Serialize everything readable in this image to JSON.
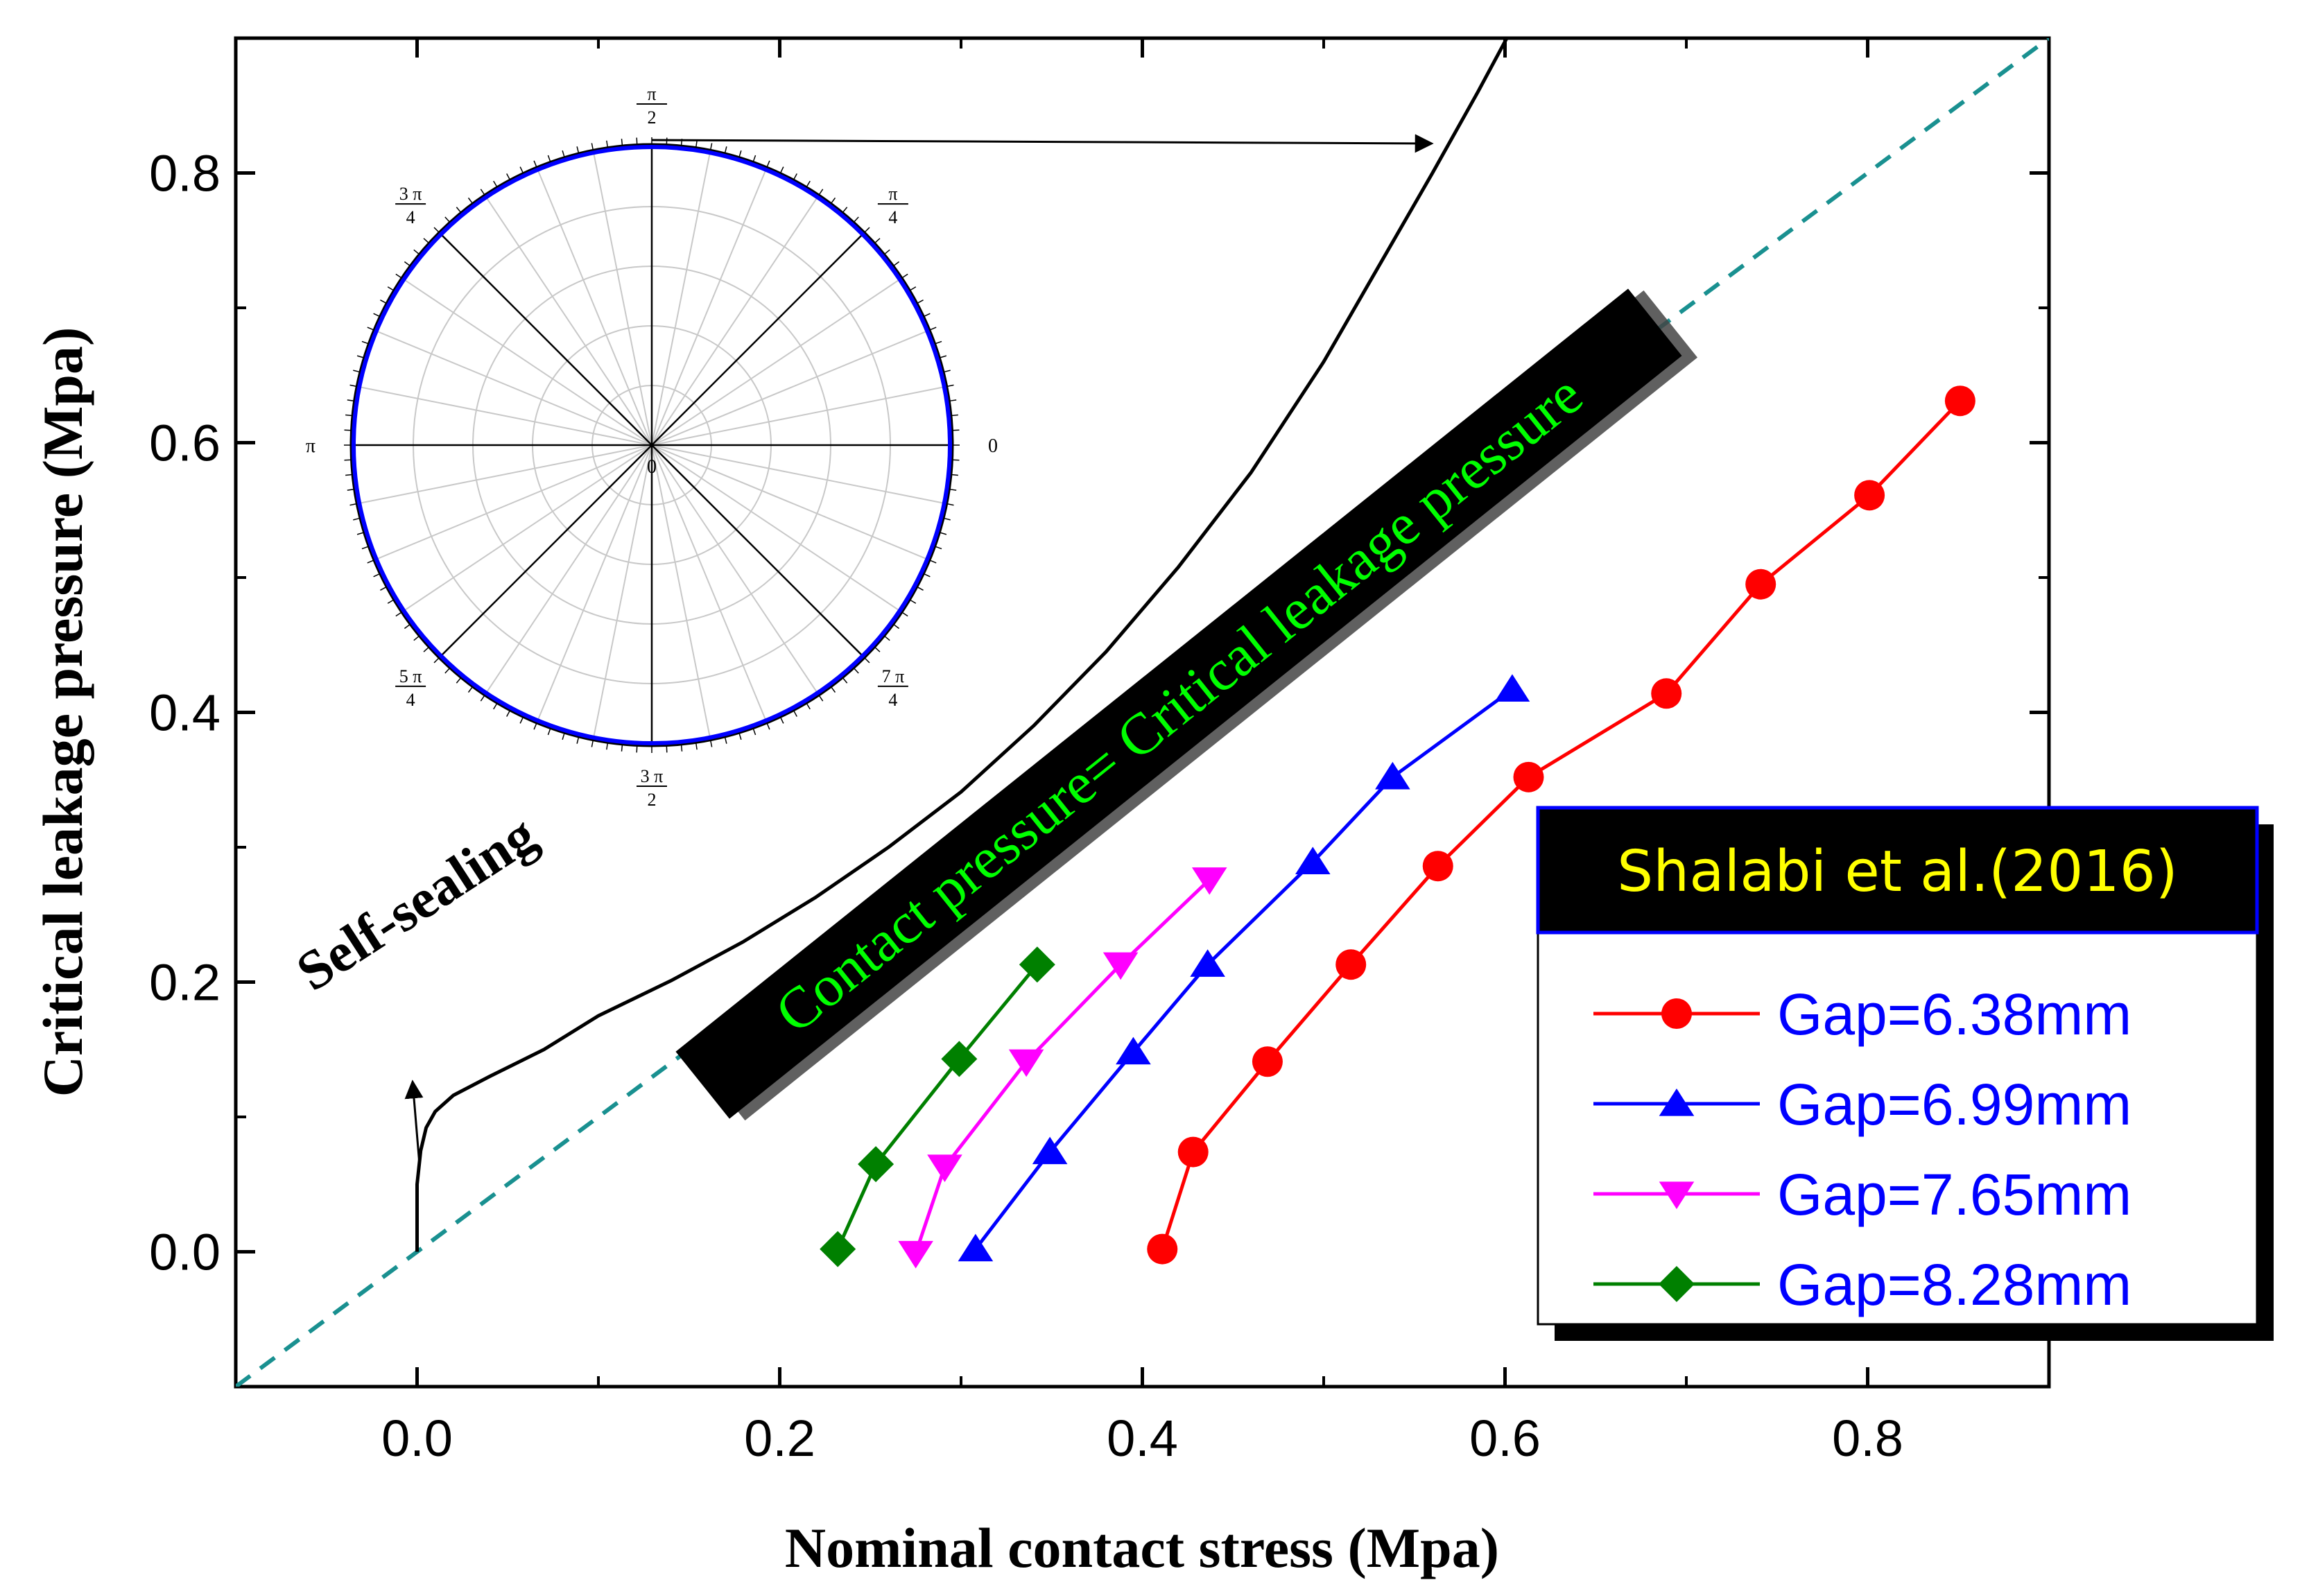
{
  "chart_data": {
    "type": "line",
    "title": "",
    "xlabel": "Nominal contact stress (Mpa)",
    "ylabel": "Critical leakage pressure (Mpa)",
    "xlim": [
      -0.1,
      0.9
    ],
    "ylim": [
      -0.1,
      0.9
    ],
    "xticks": [
      "0.0",
      "0.2",
      "0.4",
      "0.6",
      "0.8"
    ],
    "yticks": [
      "0.0",
      "0.2",
      "0.4",
      "0.6",
      "0.8"
    ],
    "legend": {
      "title": "Shalabi et al.(2016)",
      "placement": "bottom-right",
      "title_bg": "#000000",
      "title_color": "#ffff00"
    },
    "series": [
      {
        "name": "Gap=6.38mm",
        "color": "#ff0000",
        "marker": "circle",
        "x": [
          0.411,
          0.428,
          0.469,
          0.515,
          0.563,
          0.613,
          0.689,
          0.741,
          0.801,
          0.851
        ],
        "y": [
          0.002,
          0.074,
          0.141,
          0.213,
          0.286,
          0.352,
          0.414,
          0.495,
          0.561,
          0.631
        ]
      },
      {
        "name": "Gap=6.99mm",
        "color": "#0000ff",
        "marker": "triangle-up",
        "x": [
          0.308,
          0.349,
          0.395,
          0.436,
          0.494,
          0.538,
          0.604
        ],
        "y": [
          0.002,
          0.074,
          0.148,
          0.213,
          0.289,
          0.352,
          0.417
        ]
      },
      {
        "name": "Gap=7.65mm",
        "color": "#ff00ff",
        "marker": "triangle-down",
        "x": [
          0.275,
          0.291,
          0.336,
          0.388,
          0.437
        ],
        "y": [
          -0.001,
          0.063,
          0.141,
          0.213,
          0.276
        ]
      },
      {
        "name": "Gap=8.28mm",
        "color": "#008000",
        "marker": "diamond",
        "x": [
          0.232,
          0.253,
          0.299,
          0.342
        ],
        "y": [
          0.002,
          0.065,
          0.143,
          0.213
        ]
      }
    ],
    "reference_line": {
      "style": "dashed",
      "color": "#199090",
      "x": [
        -0.1,
        0.9
      ],
      "y": [
        -0.1,
        0.9
      ]
    },
    "model_curve": {
      "style": "solid",
      "color": "#000000",
      "x": [
        0.0,
        0.0,
        0.002,
        0.005,
        0.01,
        0.02,
        0.04,
        0.07,
        0.1,
        0.14,
        0.18,
        0.22,
        0.26,
        0.3,
        0.34,
        0.38,
        0.42,
        0.46,
        0.5,
        0.53,
        0.56,
        0.585,
        0.605
      ],
      "y": [
        0.0,
        0.05,
        0.075,
        0.092,
        0.104,
        0.116,
        0.13,
        0.15,
        0.175,
        0.201,
        0.23,
        0.263,
        0.3,
        0.341,
        0.39,
        0.445,
        0.508,
        0.578,
        0.66,
        0.73,
        0.8,
        0.86,
        0.91
      ]
    },
    "banner": {
      "text": "Contact pressure= Critical leakage pressure",
      "bg": "#000000",
      "color": "#00ff00"
    },
    "annotations": [
      {
        "text": "Self-sealing"
      }
    ],
    "inset": {
      "type": "polar",
      "angle_labels": [
        {
          "num": "π",
          "den": "2"
        },
        {
          "num": "π",
          "den": "4"
        },
        {
          "num": "0",
          "den": ""
        },
        {
          "num": "7 π",
          "den": "4"
        },
        {
          "num": "3 π",
          "den": "2"
        },
        {
          "num": "5 π",
          "den": "4"
        },
        {
          "num": "π",
          "den": ""
        },
        {
          "num": "3 π",
          "den": "4"
        }
      ],
      "center_label": "0",
      "curve_color": "#0000ff"
    }
  }
}
